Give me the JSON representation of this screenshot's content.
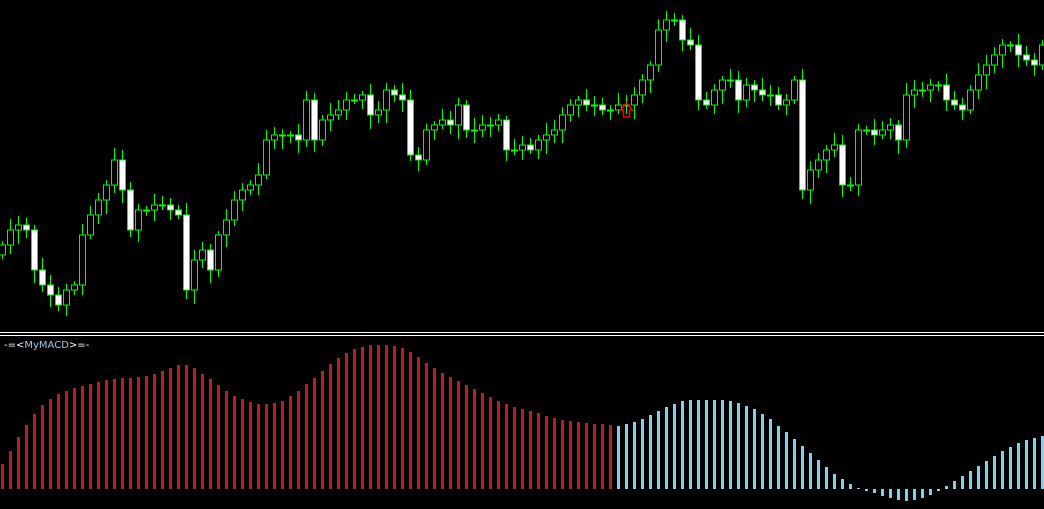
{
  "chart_data": [
    {
      "type": "candlestick",
      "colors": {
        "background": "#000000",
        "wick": "#00ff00",
        "bull_body": "#000000",
        "bear_body": "#ffffff",
        "arrow": "#ff0000"
      },
      "closes": [
        85,
        100,
        105,
        100,
        60,
        45,
        35,
        25,
        40,
        45,
        95,
        115,
        130,
        145,
        170,
        140,
        100,
        120,
        120,
        125,
        125,
        120,
        115,
        40,
        70,
        80,
        60,
        95,
        110,
        130,
        140,
        145,
        155,
        190,
        195,
        195,
        195,
        190,
        230,
        190,
        210,
        215,
        220,
        230,
        230,
        235,
        215,
        220,
        240,
        235,
        230,
        175,
        170,
        200,
        205,
        210,
        205,
        225,
        200,
        200,
        205,
        205,
        210,
        180,
        180,
        185,
        180,
        190,
        195,
        200,
        215,
        225,
        230,
        225,
        225,
        220,
        220,
        225,
        225,
        235,
        250,
        265,
        300,
        310,
        310,
        290,
        285,
        230,
        225,
        240,
        250,
        250,
        230,
        245,
        240,
        235,
        235,
        225,
        230,
        250,
        140,
        160,
        170,
        180,
        185,
        145,
        145,
        200,
        200,
        195,
        200,
        205,
        190,
        235,
        240,
        240,
        245,
        245,
        230,
        225,
        220,
        240,
        255,
        265,
        275,
        285,
        285,
        275,
        270,
        265,
        285
      ],
      "signal_arrow": {
        "direction": "up",
        "index": 78,
        "price": 227
      }
    },
    {
      "type": "bar",
      "indicator": {
        "prefix": "-=<",
        "name": "MyMACD",
        "suffix": ">=-"
      },
      "colors": {
        "rising": "#b22222",
        "falling": "#87ceeb"
      },
      "zero_line": 0,
      "red_values": [
        25,
        38,
        52,
        64,
        75,
        84,
        90,
        95,
        98,
        101,
        103,
        105,
        107,
        109,
        110,
        111,
        111,
        112,
        113,
        115,
        118,
        121,
        124,
        124,
        121,
        115,
        110,
        104,
        98,
        93,
        90,
        87,
        85,
        85,
        86,
        88,
        93,
        98,
        105,
        111,
        118,
        125,
        131,
        136,
        140,
        142,
        144,
        144,
        144,
        143,
        141,
        137,
        132,
        126,
        121,
        116,
        112,
        108,
        104,
        100,
        96,
        92,
        88,
        85,
        82,
        80,
        78,
        76,
        73,
        71,
        69,
        68,
        67,
        66,
        65,
        65,
        64
      ],
      "blue_values": [
        63,
        65,
        67,
        70,
        74,
        78,
        82,
        85,
        88,
        89,
        89,
        89,
        89,
        89,
        88,
        86,
        83,
        80,
        75,
        70,
        63,
        57,
        50,
        43,
        36,
        29,
        22,
        15,
        10,
        5,
        1,
        -2,
        -4,
        -7,
        -9,
        -11,
        -12,
        -11,
        -9,
        -6,
        -2,
        3,
        8,
        13,
        18,
        23,
        28,
        33,
        38,
        42,
        46,
        49,
        51,
        53
      ]
    }
  ]
}
